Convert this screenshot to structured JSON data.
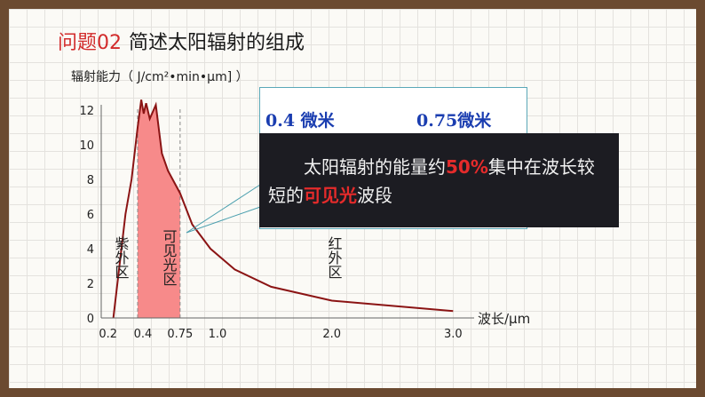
{
  "title": {
    "number": "问题02",
    "text": "简述太阳辐射的组成"
  },
  "chart_data": {
    "type": "line",
    "title": "",
    "ylabel": "辐射能力（ J/cm²•min•μm] ）",
    "xlabel": "波长/μm",
    "ylim": [
      0,
      12
    ],
    "y_ticks": [
      "0",
      "2",
      "4",
      "6",
      "8",
      "10",
      "12"
    ],
    "x_ticks": [
      "0.2",
      "0.4",
      "0.75",
      "1.0",
      "2.0",
      "3.0"
    ],
    "series": [
      {
        "name": "",
        "x": [
          0.2,
          0.25,
          0.3,
          0.35,
          0.4,
          0.43,
          0.45,
          0.47,
          0.5,
          0.55,
          0.6,
          0.65,
          0.75,
          0.85,
          1.0,
          1.2,
          1.5,
          2.0,
          2.5,
          3.0
        ],
        "y": [
          0,
          3,
          6,
          8,
          11,
          12.6,
          11.8,
          12.4,
          11.5,
          12.3,
          9.5,
          8.5,
          7.2,
          5.4,
          4,
          2.8,
          1.8,
          1.0,
          0.7,
          0.4
        ]
      }
    ],
    "regions": [
      {
        "label": "紫外区"
      },
      {
        "label": "可见光区"
      },
      {
        "label": "红外区"
      }
    ]
  },
  "callout": {
    "micro_left": "0.4 微米",
    "micro_right": "0.75微米",
    "text_part1": "太阳辐射的能量约",
    "highlight1": "50%",
    "text_part2": "集中在波长较短的",
    "highlight2": "可见光",
    "text_part3": "波段"
  }
}
